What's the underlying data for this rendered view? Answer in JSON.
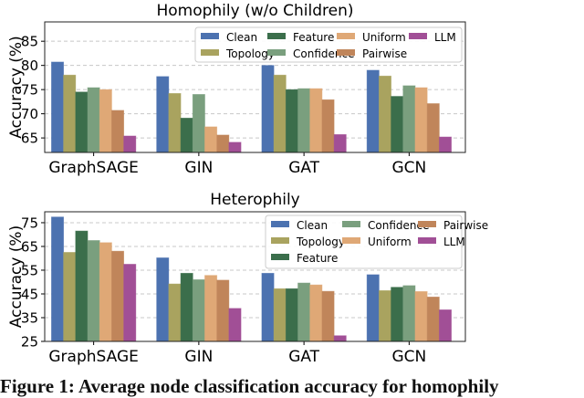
{
  "chart_data": [
    {
      "type": "bar",
      "title": "Homophily (w/o Children)",
      "xlabel": "",
      "ylabel": "Accuracy (%)",
      "ylim": [
        62,
        89
      ],
      "yticks": [
        65,
        70,
        75,
        80,
        85
      ],
      "grid": "horizontal dashed",
      "legend": "top-right",
      "legend_columns": 4,
      "categories": [
        "GraphSAGE",
        "GIN",
        "GAT",
        "GCN"
      ],
      "series": [
        {
          "name": "Clean",
          "color": "#4c72b0",
          "values": [
            80.7,
            77.7,
            80.0,
            79.0
          ]
        },
        {
          "name": "Topology",
          "color": "#a9a35f",
          "values": [
            78.0,
            74.2,
            78.0,
            77.8
          ]
        },
        {
          "name": "Feature",
          "color": "#3b6e4b",
          "values": [
            74.5,
            69.1,
            75.0,
            73.6
          ]
        },
        {
          "name": "Confidence",
          "color": "#7a9f7e",
          "values": [
            75.4,
            74.0,
            75.2,
            75.8
          ]
        },
        {
          "name": "Uniform",
          "color": "#dfa876",
          "values": [
            75.0,
            67.3,
            75.2,
            75.4
          ]
        },
        {
          "name": "Pairwise",
          "color": "#c0855a",
          "values": [
            70.7,
            65.6,
            72.9,
            72.1
          ]
        },
        {
          "name": "LLM",
          "color": "#a14f96",
          "values": [
            65.4,
            64.1,
            65.7,
            65.2
          ]
        }
      ]
    },
    {
      "type": "bar",
      "title": "Heterophily",
      "xlabel": "",
      "ylabel": "Accuracy (%)",
      "ylim": [
        25,
        79.6
      ],
      "yticks": [
        25,
        35,
        45,
        55,
        65,
        75
      ],
      "grid": "horizontal dashed",
      "legend": "top-right",
      "legend_columns": 3,
      "categories": [
        "GraphSAGE",
        "GIN",
        "GAT",
        "GCN"
      ],
      "series": [
        {
          "name": "Clean",
          "color": "#4c72b0",
          "values": [
            77.4,
            60.2,
            53.7,
            53.1
          ]
        },
        {
          "name": "Topology",
          "color": "#a9a35f",
          "values": [
            62.5,
            49.2,
            47.2,
            46.4
          ]
        },
        {
          "name": "Feature",
          "color": "#3b6e4b",
          "values": [
            71.5,
            53.7,
            47.2,
            47.8
          ]
        },
        {
          "name": "Confidence",
          "color": "#7a9f7e",
          "values": [
            67.5,
            51.0,
            49.6,
            48.5
          ]
        },
        {
          "name": "Uniform",
          "color": "#dfa876",
          "values": [
            66.6,
            52.8,
            48.8,
            46.0
          ]
        },
        {
          "name": "Pairwise",
          "color": "#c0855a",
          "values": [
            63.0,
            50.8,
            46.1,
            43.7
          ]
        },
        {
          "name": "LLM",
          "color": "#a14f96",
          "values": [
            57.5,
            38.9,
            27.4,
            38.3
          ]
        }
      ]
    }
  ],
  "caption": "Figure 1: Average node classification accuracy for homophily"
}
